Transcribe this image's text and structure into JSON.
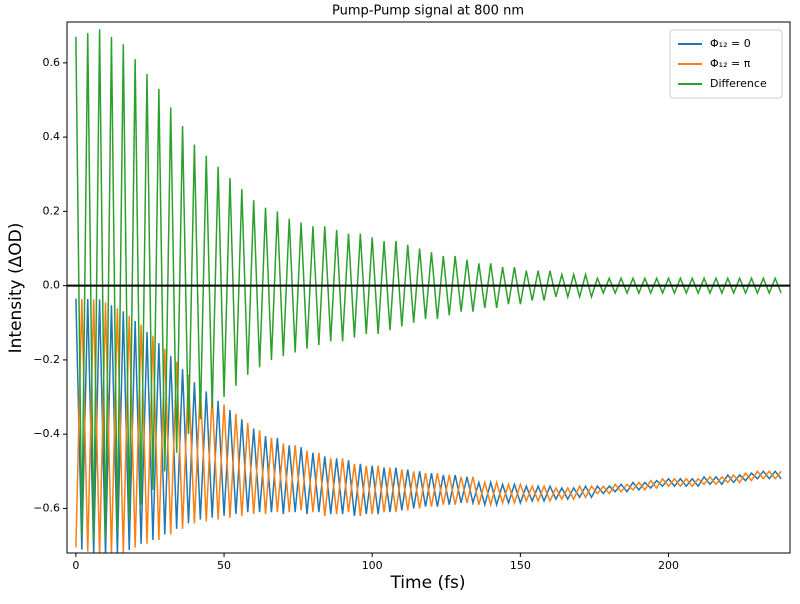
{
  "chart_data": {
    "type": "line",
    "title": "Pump-Pump signal at 800 nm",
    "x_label": "Time (fs)",
    "y_label": "Intensity (ΔOD)",
    "x": [
      0,
      2,
      4,
      6,
      8,
      10,
      12,
      14,
      16,
      18,
      20,
      22,
      24,
      26,
      28,
      30,
      32,
      34,
      36,
      38,
      40,
      42,
      44,
      46,
      48,
      50,
      52,
      54,
      56,
      58,
      60,
      62,
      64,
      66,
      68,
      70,
      72,
      74,
      76,
      78,
      80,
      82,
      84,
      86,
      88,
      90,
      92,
      94,
      96,
      98,
      100,
      102,
      104,
      106,
      108,
      110,
      112,
      114,
      116,
      118,
      120,
      122,
      124,
      126,
      128,
      130,
      132,
      134,
      136,
      138,
      140,
      142,
      144,
      146,
      148,
      150,
      152,
      154,
      156,
      158,
      160,
      162,
      164,
      166,
      168,
      170,
      172,
      174,
      176,
      178,
      180,
      182,
      184,
      186,
      188,
      190,
      192,
      194,
      196,
      198,
      200,
      202,
      204,
      206,
      208,
      210,
      212,
      214,
      216,
      218,
      220,
      222,
      224,
      226,
      228,
      230,
      232,
      234,
      236,
      238
    ],
    "series": [
      {
        "name": "Φ₁₂ = 0",
        "color": "#1f77b4",
        "values": [
          -0.035,
          -0.711,
          -0.036,
          -0.722,
          -0.037,
          -0.725,
          -0.053,
          -0.721,
          -0.069,
          -0.712,
          -0.095,
          -0.695,
          -0.125,
          -0.685,
          -0.155,
          -0.67,
          -0.19,
          -0.655,
          -0.225,
          -0.64,
          -0.26,
          -0.63,
          -0.285,
          -0.625,
          -0.31,
          -0.62,
          -0.335,
          -0.615,
          -0.36,
          -0.61,
          -0.385,
          -0.61,
          -0.405,
          -0.61,
          -0.41,
          -0.615,
          -0.43,
          -0.61,
          -0.435,
          -0.615,
          -0.45,
          -0.61,
          -0.46,
          -0.615,
          -0.465,
          -0.615,
          -0.47,
          -0.62,
          -0.48,
          -0.615,
          -0.485,
          -0.615,
          -0.49,
          -0.61,
          -0.49,
          -0.605,
          -0.495,
          -0.6,
          -0.5,
          -0.595,
          -0.505,
          -0.595,
          -0.51,
          -0.59,
          -0.51,
          -0.585,
          -0.515,
          -0.585,
          -0.53,
          -0.59,
          -0.53,
          -0.59,
          -0.535,
          -0.585,
          -0.535,
          -0.585,
          -0.54,
          -0.58,
          -0.54,
          -0.58,
          -0.54,
          -0.575,
          -0.545,
          -0.575,
          -0.545,
          -0.57,
          -0.54,
          -0.57,
          -0.54,
          -0.56,
          -0.54,
          -0.555,
          -0.535,
          -0.555,
          -0.53,
          -0.55,
          -0.53,
          -0.545,
          -0.525,
          -0.54,
          -0.52,
          -0.54,
          -0.52,
          -0.54,
          -0.52,
          -0.54,
          -0.515,
          -0.535,
          -0.515,
          -0.535,
          -0.51,
          -0.53,
          -0.51,
          -0.525,
          -0.505,
          -0.52,
          -0.5,
          -0.52,
          -0.5,
          -0.52
        ]
      },
      {
        "name": "Φ₁₂ = π",
        "color": "#ff7f0e",
        "values": [
          -0.705,
          -0.036,
          -0.716,
          -0.037,
          -0.727,
          -0.045,
          -0.723,
          -0.061,
          -0.719,
          -0.082,
          -0.705,
          -0.105,
          -0.695,
          -0.135,
          -0.685,
          -0.17,
          -0.67,
          -0.205,
          -0.655,
          -0.24,
          -0.64,
          -0.27,
          -0.635,
          -0.295,
          -0.63,
          -0.32,
          -0.625,
          -0.345,
          -0.62,
          -0.37,
          -0.615,
          -0.39,
          -0.615,
          -0.41,
          -0.61,
          -0.425,
          -0.61,
          -0.43,
          -0.605,
          -0.445,
          -0.61,
          -0.45,
          -0.62,
          -0.465,
          -0.615,
          -0.465,
          -0.61,
          -0.48,
          -0.62,
          -0.485,
          -0.615,
          -0.485,
          -0.61,
          -0.49,
          -0.61,
          -0.495,
          -0.605,
          -0.5,
          -0.6,
          -0.505,
          -0.595,
          -0.505,
          -0.59,
          -0.51,
          -0.59,
          -0.515,
          -0.585,
          -0.515,
          -0.59,
          -0.53,
          -0.59,
          -0.53,
          -0.585,
          -0.535,
          -0.585,
          -0.535,
          -0.58,
          -0.54,
          -0.58,
          -0.54,
          -0.58,
          -0.545,
          -0.575,
          -0.545,
          -0.575,
          -0.54,
          -0.57,
          -0.54,
          -0.56,
          -0.54,
          -0.56,
          -0.535,
          -0.555,
          -0.535,
          -0.55,
          -0.53,
          -0.55,
          -0.525,
          -0.545,
          -0.52,
          -0.54,
          -0.52,
          -0.54,
          -0.52,
          -0.54,
          -0.52,
          -0.535,
          -0.515,
          -0.535,
          -0.515,
          -0.53,
          -0.51,
          -0.53,
          -0.505,
          -0.525,
          -0.5,
          -0.52,
          -0.5,
          -0.52,
          -0.5
        ]
      },
      {
        "name": "Difference",
        "color": "#2ca02c",
        "values": [
          0.67,
          -0.675,
          0.68,
          -0.685,
          0.69,
          -0.68,
          0.67,
          -0.66,
          0.65,
          -0.63,
          0.61,
          -0.59,
          0.57,
          -0.55,
          0.53,
          -0.5,
          0.48,
          -0.45,
          0.43,
          -0.4,
          0.38,
          -0.36,
          0.35,
          -0.33,
          0.32,
          -0.3,
          0.29,
          -0.27,
          0.26,
          -0.24,
          0.23,
          -0.22,
          0.21,
          -0.2,
          0.2,
          -0.19,
          0.18,
          -0.18,
          0.17,
          -0.17,
          0.16,
          -0.16,
          0.16,
          -0.15,
          0.15,
          -0.15,
          0.14,
          -0.14,
          0.14,
          -0.13,
          0.13,
          -0.13,
          0.12,
          -0.12,
          0.12,
          -0.11,
          0.11,
          -0.1,
          0.1,
          -0.09,
          0.09,
          -0.09,
          0.08,
          -0.08,
          0.08,
          -0.07,
          0.07,
          -0.07,
          0.06,
          -0.06,
          0.06,
          -0.06,
          0.05,
          -0.05,
          0.05,
          -0.05,
          0.04,
          -0.04,
          0.04,
          -0.04,
          0.04,
          -0.03,
          0.03,
          -0.03,
          0.03,
          -0.03,
          0.03,
          -0.03,
          0.02,
          -0.02,
          0.02,
          -0.02,
          0.02,
          -0.02,
          0.02,
          -0.02,
          0.02,
          -0.02,
          0.02,
          -0.02,
          0.02,
          -0.02,
          0.02,
          -0.02,
          0.02,
          -0.02,
          0.02,
          -0.02,
          0.02,
          -0.02,
          0.02,
          -0.02,
          0.02,
          -0.02,
          0.02,
          -0.02,
          0.02,
          -0.02,
          0.02,
          -0.02
        ]
      }
    ],
    "hline": 0,
    "hline_color": "#000000",
    "xlim": [
      -3,
      241
    ],
    "ylim": [
      -0.72,
      0.71
    ],
    "xticks": [
      0,
      50,
      100,
      150,
      200
    ],
    "yticks": [
      {
        "value": -0.6,
        "label": "−0.6"
      },
      {
        "value": -0.4,
        "label": "−0.4"
      },
      {
        "value": -0.2,
        "label": "−0.2"
      },
      {
        "value": 0,
        "label": "0.0"
      },
      0.2,
      0.4,
      0.6
    ],
    "legend": "upper right"
  }
}
